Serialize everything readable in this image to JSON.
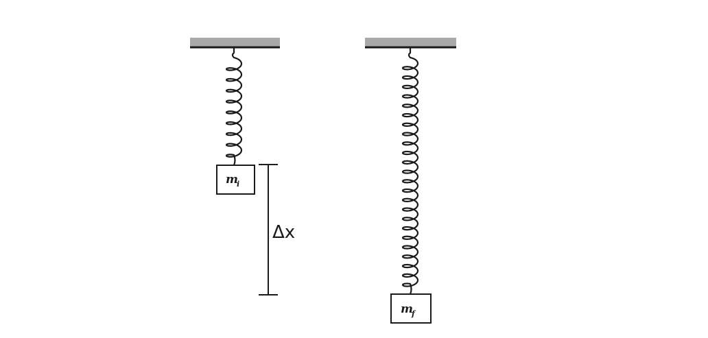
{
  "left_setup": {
    "mass_label": "m",
    "mass_subscript": "i",
    "coil_turns": 9
  },
  "right_setup": {
    "mass_label": "m",
    "mass_subscript": "f",
    "coil_turns": 24
  },
  "displacement_label": "Δx",
  "colors": {
    "ceiling_fill": "#a9a9a9",
    "line": "#1a1a1a"
  }
}
